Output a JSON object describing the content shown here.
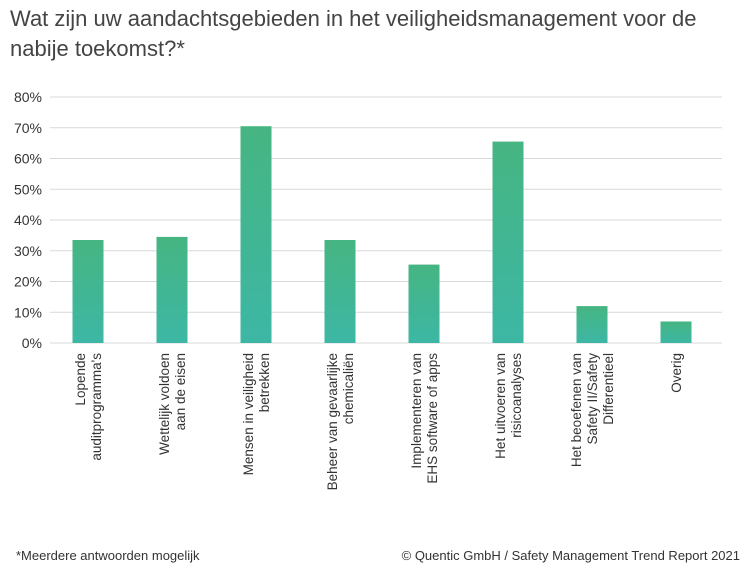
{
  "title": "Wat zijn uw aandachtsgebieden in het veiligheidsmanagement voor de nabije toekomst?*",
  "footnote": "*Meerdere antwoorden mogelijk",
  "credit": "© Quentic GmbH / Safety Management Trend Report 2021",
  "colors": {
    "bar_top": "#46b582",
    "bar_bottom": "#3db7a5",
    "grid": "#d9d9d9",
    "axis_text": "#333333"
  },
  "chart_data": {
    "type": "bar",
    "title": "Wat zijn uw aandachtsgebieden in het veiligheidsmanagement voor de nabije toekomst?*",
    "xlabel": "",
    "ylabel": "",
    "ylim": [
      0,
      80
    ],
    "y_ticks": [
      "0%",
      "10%",
      "20%",
      "30%",
      "40%",
      "50%",
      "60%",
      "70%",
      "80%"
    ],
    "grid": true,
    "categories": [
      [
        "Lopende",
        "auditprogramma's"
      ],
      [
        "Wettelijk voldoen",
        "aan de eisen"
      ],
      [
        "Mensen in veiligheid",
        "betrekken"
      ],
      [
        "Beheer van gevaarlijke",
        "chemicaliën"
      ],
      [
        "Implementeren van",
        "EHS software of apps"
      ],
      [
        "Het uitvoeren van",
        "risicoanalyses"
      ],
      [
        "Het beoefenen van",
        "Safety II/Safety",
        "Differentieel"
      ],
      [
        "Overig"
      ]
    ],
    "values": [
      33.5,
      34.5,
      70.5,
      33.5,
      25.5,
      65.5,
      12,
      7
    ]
  }
}
